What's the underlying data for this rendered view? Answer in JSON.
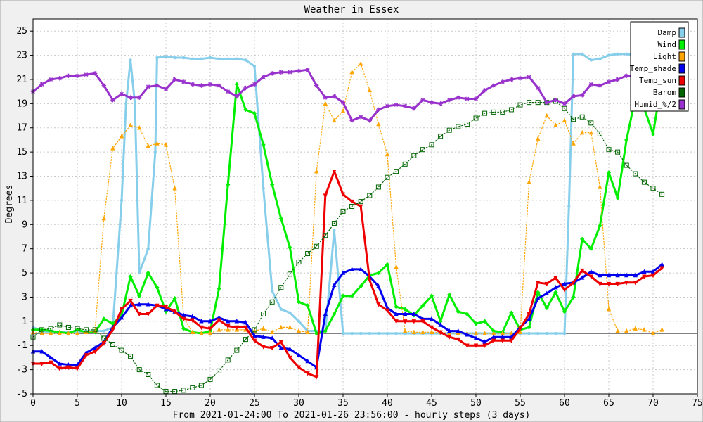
{
  "chart_data": {
    "type": "line",
    "title": "Weather in Essex",
    "xlabel": "From 2021-01-24:00 To 2021-01-26 23:56:00 - hourly steps (3 days)",
    "ylabel": "Degrees",
    "xlim": [
      0,
      75
    ],
    "ylim": [
      -5,
      26
    ],
    "x_ticks": [
      0,
      5,
      10,
      15,
      20,
      25,
      30,
      35,
      40,
      45,
      50,
      55,
      60,
      65,
      70,
      75
    ],
    "y_ticks": [
      -5,
      -3,
      -1,
      1,
      3,
      5,
      7,
      9,
      11,
      13,
      15,
      17,
      19,
      21,
      23,
      25
    ],
    "zero_line": 0,
    "grid": true,
    "legend_position": "top-right",
    "series": [
      {
        "name": "Damp",
        "color": "#87ceeb",
        "style": "solid",
        "width": 3,
        "marker": "dot",
        "x": [
          0,
          1,
          2,
          3,
          4,
          5,
          6,
          7,
          8,
          9,
          10,
          10.5,
          11,
          11.5,
          12,
          13,
          13.8,
          14,
          15,
          16,
          17,
          18,
          19,
          20,
          21,
          22,
          23,
          24,
          25,
          26,
          27,
          28,
          29,
          30,
          31,
          32,
          33,
          34,
          35,
          36,
          37,
          38,
          39,
          40,
          41,
          42,
          43,
          44,
          45,
          46,
          47,
          48,
          49,
          50,
          51,
          52,
          53,
          54,
          55,
          56,
          57,
          58,
          59,
          60,
          60.5,
          61,
          62,
          63,
          64,
          65,
          66,
          67,
          68,
          69,
          70,
          71
        ],
        "y": [
          0.5,
          0.2,
          0.1,
          0.1,
          0.1,
          0.1,
          0.2,
          0.2,
          0.2,
          0.5,
          11,
          19,
          22.6,
          19,
          5,
          7,
          15,
          22.8,
          22.9,
          22.8,
          22.8,
          22.7,
          22.7,
          22.8,
          22.7,
          22.7,
          22.7,
          22.6,
          22.1,
          12,
          3.5,
          2,
          1.7,
          1,
          0.2,
          0.2,
          0.2,
          8.5,
          0,
          0,
          0,
          0,
          0,
          0,
          0,
          0,
          0,
          0,
          0,
          0,
          0,
          0,
          0,
          0,
          0,
          0,
          0,
          0,
          0,
          0,
          0,
          0,
          0,
          0,
          10.5,
          23.1,
          23.1,
          22.6,
          22.7,
          23,
          23.1,
          23.1,
          23,
          22.9,
          22.9,
          22.9
        ]
      },
      {
        "name": "Wind",
        "color": "#00ee00",
        "style": "solid",
        "width": 3,
        "marker": "diamond",
        "x": [
          0,
          1,
          2,
          3,
          4,
          5,
          6,
          7,
          8,
          9,
          10,
          11,
          12,
          13,
          14,
          15,
          16,
          17,
          18,
          19,
          20,
          21,
          22,
          23,
          24,
          25,
          26,
          27,
          28,
          29,
          30,
          31,
          32,
          33,
          34,
          35,
          36,
          37,
          38,
          39,
          40,
          41,
          42,
          43,
          44,
          45,
          46,
          47,
          48,
          49,
          50,
          51,
          52,
          53,
          54,
          55,
          56,
          57,
          58,
          59,
          60,
          61,
          62,
          63,
          64,
          65,
          66,
          67,
          68,
          69,
          70,
          71
        ],
        "y": [
          0.3,
          0.3,
          0.2,
          0.1,
          0,
          0.3,
          0.1,
          0.1,
          1.2,
          0.8,
          1.5,
          4.7,
          3.1,
          5,
          3.8,
          1.8,
          2.9,
          0.4,
          0.1,
          0,
          0.2,
          3.7,
          12.3,
          20.6,
          18.5,
          18.2,
          15.6,
          12.3,
          9.5,
          7.1,
          2.6,
          2.3,
          0,
          0.2,
          1.6,
          3.1,
          3.1,
          3.9,
          4.8,
          5,
          5.7,
          2.2,
          2,
          1.5,
          2.3,
          3.1,
          1,
          3.2,
          1.8,
          1.6,
          0.8,
          1,
          0.2,
          0.1,
          1.7,
          0.3,
          0.5,
          3.4,
          2.1,
          3.4,
          1.8,
          3,
          7.8,
          7,
          8.9,
          13.3,
          11.2,
          16,
          19.5,
          18.6,
          16.5,
          21
        ]
      },
      {
        "name": "Light",
        "color": "#ffa500",
        "style": "dotted",
        "width": 1.2,
        "marker": "triangle",
        "x": [
          0,
          1,
          2,
          3,
          4,
          5,
          6,
          7,
          8,
          9,
          10,
          11,
          12,
          13,
          14,
          15,
          16,
          17,
          18,
          19,
          20,
          21,
          22,
          23,
          24,
          25,
          26,
          27,
          28,
          29,
          30,
          31,
          32,
          33,
          34,
          35,
          36,
          37,
          38,
          39,
          40,
          41,
          42,
          43,
          44,
          45,
          46,
          47,
          48,
          49,
          50,
          51,
          52,
          53,
          54,
          55,
          56,
          57,
          58,
          59,
          60,
          61,
          62,
          63,
          64,
          65,
          66,
          67,
          68,
          69,
          70,
          71
        ],
        "y": [
          0.1,
          0,
          0,
          0,
          0,
          0,
          0.1,
          0.2,
          9.5,
          15.3,
          16.3,
          17.2,
          17,
          15.5,
          15.7,
          15.6,
          12,
          1.3,
          0.1,
          0,
          0,
          0.3,
          0.3,
          0.3,
          0.3,
          0.2,
          0.4,
          0.1,
          0.5,
          0.5,
          0.2,
          0.1,
          13.4,
          19,
          17.6,
          18.4,
          21.6,
          22.3,
          20.1,
          17.3,
          14.8,
          5.5,
          0.2,
          0.1,
          0.1,
          0.1,
          0.1,
          0,
          0,
          0,
          0,
          0,
          0,
          0,
          0,
          0.1,
          12.5,
          16.1,
          18,
          17.2,
          17.6,
          15.7,
          16.6,
          16.6,
          12.1,
          2,
          0.2,
          0.2,
          0.4,
          0.3,
          0,
          0.3
        ]
      },
      {
        "name": "Temp_shade",
        "color": "#0000ee",
        "style": "solid",
        "width": 3,
        "marker": "triangle",
        "x": [
          0,
          1,
          2,
          3,
          4,
          5,
          6,
          7,
          8,
          9,
          10,
          11,
          12,
          13,
          14,
          15,
          16,
          17,
          18,
          19,
          20,
          21,
          22,
          23,
          24,
          25,
          26,
          27,
          28,
          29,
          30,
          31,
          32,
          33,
          34,
          35,
          36,
          37,
          38,
          39,
          40,
          41,
          42,
          43,
          44,
          45,
          46,
          47,
          48,
          49,
          50,
          51,
          52,
          53,
          54,
          55,
          56,
          57,
          58,
          59,
          60,
          61,
          62,
          63,
          64,
          65,
          66,
          67,
          68,
          69,
          70,
          71
        ],
        "y": [
          -1.5,
          -1.5,
          -2,
          -2.5,
          -2.6,
          -2.6,
          -1.6,
          -1.2,
          -0.7,
          0.5,
          1.3,
          2.3,
          2.4,
          2.4,
          2.3,
          2,
          1.8,
          1.5,
          1.4,
          1,
          1,
          1.3,
          1,
          1,
          0.9,
          -0.2,
          -0.3,
          -0.4,
          -1.2,
          -1.3,
          -1.8,
          -2.3,
          -2.8,
          1.6,
          4,
          5,
          5.3,
          5.3,
          4.7,
          3.9,
          2.1,
          1.6,
          1.6,
          1.6,
          1.2,
          1.2,
          0.7,
          0.2,
          0.2,
          -0.1,
          -0.4,
          -0.7,
          -0.3,
          -0.3,
          -0.3,
          0.5,
          1.2,
          2.9,
          3.3,
          3.8,
          4.1,
          4.2,
          4.6,
          5.1,
          4.8,
          4.8,
          4.8,
          4.8,
          4.8,
          5.1,
          5.1,
          5.7
        ]
      },
      {
        "name": "Temp_sun",
        "color": "#ee0000",
        "style": "solid",
        "width": 3,
        "marker": "triangle-down",
        "x": [
          0,
          1,
          2,
          3,
          4,
          5,
          6,
          7,
          8,
          9,
          10,
          11,
          12,
          13,
          14,
          15,
          16,
          17,
          18,
          19,
          20,
          21,
          22,
          23,
          24,
          25,
          26,
          27,
          28,
          29,
          30,
          31,
          32,
          33,
          34,
          35,
          36,
          37,
          38,
          39,
          40,
          41,
          42,
          43,
          44,
          45,
          46,
          47,
          48,
          49,
          50,
          51,
          52,
          53,
          54,
          55,
          56,
          57,
          58,
          59,
          60,
          61,
          62,
          63,
          64,
          65,
          66,
          67,
          68,
          69,
          70,
          71
        ],
        "y": [
          -2.5,
          -2.5,
          -2.4,
          -2.9,
          -2.8,
          -2.9,
          -1.8,
          -1.5,
          -0.8,
          0.3,
          2,
          2.7,
          1.6,
          1.6,
          2.3,
          2.2,
          1.8,
          1.2,
          1.1,
          0.5,
          0.4,
          1.1,
          0.6,
          0.5,
          0.5,
          -0.6,
          -1.1,
          -1.2,
          -0.7,
          -2,
          -2.8,
          -3.3,
          -3.6,
          11.4,
          13.4,
          11.5,
          10.9,
          10.5,
          4.4,
          2.4,
          1.9,
          1,
          1,
          1,
          1,
          0.5,
          0.1,
          -0.3,
          -0.5,
          -1,
          -1,
          -1,
          -0.6,
          -0.6,
          -0.6,
          0.4,
          1.6,
          4.2,
          4.1,
          4.6,
          3.6,
          4.2,
          5.2,
          4.7,
          4.1,
          4.1,
          4.1,
          4.2,
          4.2,
          4.7,
          4.8,
          5.4
        ]
      },
      {
        "name": "Barom",
        "color": "#006400",
        "style": "dotted",
        "width": 1.2,
        "marker": "square-open",
        "x": [
          0,
          1,
          2,
          3,
          4,
          5,
          6,
          7,
          8,
          9,
          10,
          11,
          12,
          13,
          14,
          15,
          16,
          17,
          18,
          19,
          20,
          21,
          22,
          23,
          24,
          25,
          26,
          27,
          28,
          29,
          30,
          31,
          32,
          33,
          34,
          35,
          36,
          37,
          38,
          39,
          40,
          41,
          42,
          43,
          44,
          45,
          46,
          47,
          48,
          49,
          50,
          51,
          52,
          53,
          54,
          55,
          56,
          57,
          58,
          59,
          60,
          61,
          62,
          63,
          64,
          65,
          66,
          67,
          68,
          69,
          70,
          71
        ],
        "y": [
          -0.3,
          0.3,
          0.4,
          0.7,
          0.5,
          0.4,
          0.3,
          0.3,
          -0.4,
          -0.9,
          -1.4,
          -1.9,
          -3,
          -3.4,
          -4.3,
          -4.8,
          -4.8,
          -4.7,
          -4.5,
          -4.3,
          -3.8,
          -3.1,
          -2.2,
          -1.4,
          -0.5,
          0.3,
          1.6,
          2.6,
          3.8,
          4.9,
          5.9,
          6.6,
          7.2,
          8.1,
          9.1,
          10.1,
          10.5,
          10.9,
          11.4,
          12.1,
          12.9,
          13.4,
          14,
          14.7,
          15.2,
          15.6,
          16.3,
          16.8,
          17.1,
          17.3,
          17.8,
          18.2,
          18.3,
          18.3,
          18.5,
          18.9,
          19.1,
          19.1,
          19.1,
          19.2,
          18.6,
          17.7,
          17.9,
          17.4,
          16.5,
          15.2,
          15,
          13.9,
          13.2,
          12.5,
          12,
          11.5
        ]
      },
      {
        "name": "Humid_%/2",
        "color": "#9932cc",
        "style": "solid",
        "width": 3,
        "marker": "star",
        "x": [
          0,
          1,
          2,
          3,
          4,
          5,
          6,
          7,
          8,
          9,
          10,
          11,
          12,
          13,
          14,
          15,
          16,
          17,
          18,
          19,
          20,
          21,
          22,
          23,
          24,
          25,
          26,
          27,
          28,
          29,
          30,
          31,
          32,
          33,
          34,
          35,
          36,
          37,
          38,
          39,
          40,
          41,
          42,
          43,
          44,
          45,
          46,
          47,
          48,
          49,
          50,
          51,
          52,
          53,
          54,
          55,
          56,
          57,
          58,
          59,
          60,
          61,
          62,
          63,
          64,
          65,
          66,
          67,
          68,
          69,
          70,
          71
        ],
        "y": [
          20,
          20.6,
          21,
          21.1,
          21.3,
          21.3,
          21.4,
          21.5,
          20.5,
          19.3,
          19.8,
          19.5,
          19.5,
          20.4,
          20.5,
          20.2,
          21,
          20.8,
          20.6,
          20.5,
          20.6,
          20.5,
          20,
          19.6,
          20.3,
          20.6,
          21.2,
          21.5,
          21.6,
          21.6,
          21.7,
          21.8,
          20.5,
          19.5,
          19.6,
          19.1,
          17.6,
          17.9,
          17.6,
          18.5,
          18.8,
          18.9,
          18.8,
          18.6,
          19.3,
          19.1,
          19,
          19.3,
          19.5,
          19.4,
          19.4,
          20.1,
          20.5,
          20.8,
          21,
          21.1,
          21.2,
          20.3,
          19.1,
          19.3,
          19,
          19.6,
          19.7,
          20.6,
          20.5,
          20.8,
          21,
          21.3,
          21.3,
          21.6,
          21.6,
          22
        ]
      }
    ]
  }
}
